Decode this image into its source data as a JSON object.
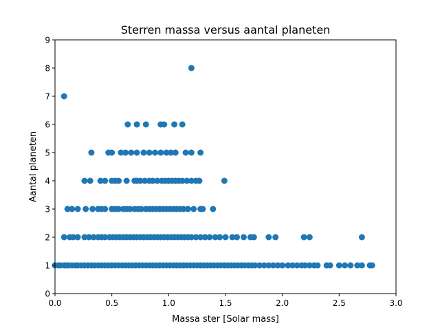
{
  "chart_data": {
    "type": "scatter",
    "title": "Sterren massa versus aantal planeten",
    "xlabel": "Massa ster [Solar mass]",
    "ylabel": "Aantal planeten",
    "xlim": [
      0.0,
      3.0
    ],
    "ylim": [
      0,
      9
    ],
    "xticks": [
      "0.0",
      "0.5",
      "1.0",
      "1.5",
      "2.0",
      "2.5",
      "3.0"
    ],
    "yticks": [
      "0",
      "1",
      "2",
      "3",
      "4",
      "5",
      "6",
      "7",
      "8",
      "9"
    ],
    "grid": false,
    "legend": "none",
    "marker_color": "#1f77b4",
    "series": [
      {
        "points": [
          [
            0.08,
            7
          ],
          [
            1.2,
            8
          ],
          [
            0.64,
            6
          ],
          [
            0.72,
            6
          ],
          [
            0.8,
            6
          ],
          [
            0.93,
            6
          ],
          [
            0.96,
            6
          ],
          [
            1.05,
            6
          ],
          [
            1.12,
            6
          ],
          [
            0.32,
            5
          ],
          [
            0.47,
            5
          ],
          [
            0.5,
            5
          ],
          [
            0.58,
            5
          ],
          [
            0.62,
            5
          ],
          [
            0.67,
            5
          ],
          [
            0.72,
            5
          ],
          [
            0.78,
            5
          ],
          [
            0.83,
            5
          ],
          [
            0.88,
            5
          ],
          [
            0.93,
            5
          ],
          [
            0.98,
            5
          ],
          [
            1.02,
            5
          ],
          [
            1.06,
            5
          ],
          [
            1.15,
            5
          ],
          [
            1.2,
            5
          ],
          [
            1.28,
            5
          ],
          [
            0.26,
            4
          ],
          [
            0.31,
            4
          ],
          [
            0.4,
            4
          ],
          [
            0.44,
            4
          ],
          [
            0.5,
            4
          ],
          [
            0.53,
            4
          ],
          [
            0.56,
            4
          ],
          [
            0.63,
            4
          ],
          [
            0.7,
            4
          ],
          [
            0.72,
            4
          ],
          [
            0.75,
            4
          ],
          [
            0.79,
            4
          ],
          [
            0.83,
            4
          ],
          [
            0.86,
            4
          ],
          [
            0.9,
            4
          ],
          [
            0.94,
            4
          ],
          [
            0.97,
            4
          ],
          [
            1.0,
            4
          ],
          [
            1.03,
            4
          ],
          [
            1.06,
            4
          ],
          [
            1.09,
            4
          ],
          [
            1.12,
            4
          ],
          [
            1.16,
            4
          ],
          [
            1.2,
            4
          ],
          [
            1.24,
            4
          ],
          [
            1.27,
            4
          ],
          [
            1.49,
            4
          ],
          [
            0.11,
            3
          ],
          [
            0.15,
            3
          ],
          [
            0.2,
            3
          ],
          [
            0.27,
            3
          ],
          [
            0.33,
            3
          ],
          [
            0.38,
            3
          ],
          [
            0.41,
            3
          ],
          [
            0.44,
            3
          ],
          [
            0.5,
            3
          ],
          [
            0.53,
            3
          ],
          [
            0.56,
            3
          ],
          [
            0.6,
            3
          ],
          [
            0.63,
            3
          ],
          [
            0.66,
            3
          ],
          [
            0.7,
            3
          ],
          [
            0.73,
            3
          ],
          [
            0.76,
            3
          ],
          [
            0.8,
            3
          ],
          [
            0.83,
            3
          ],
          [
            0.86,
            3
          ],
          [
            0.89,
            3
          ],
          [
            0.92,
            3
          ],
          [
            0.95,
            3
          ],
          [
            0.98,
            3
          ],
          [
            1.01,
            3
          ],
          [
            1.04,
            3
          ],
          [
            1.07,
            3
          ],
          [
            1.1,
            3
          ],
          [
            1.13,
            3
          ],
          [
            1.17,
            3
          ],
          [
            1.22,
            3
          ],
          [
            1.28,
            3
          ],
          [
            1.3,
            3
          ],
          [
            1.39,
            3
          ],
          [
            0.08,
            2
          ],
          [
            0.13,
            2
          ],
          [
            0.16,
            2
          ],
          [
            0.2,
            2
          ],
          [
            0.26,
            2
          ],
          [
            0.3,
            2
          ],
          [
            0.34,
            2
          ],
          [
            0.38,
            2
          ],
          [
            0.41,
            2
          ],
          [
            0.44,
            2
          ],
          [
            0.48,
            2
          ],
          [
            0.51,
            2
          ],
          [
            0.54,
            2
          ],
          [
            0.57,
            2
          ],
          [
            0.6,
            2
          ],
          [
            0.63,
            2
          ],
          [
            0.66,
            2
          ],
          [
            0.69,
            2
          ],
          [
            0.72,
            2
          ],
          [
            0.75,
            2
          ],
          [
            0.78,
            2
          ],
          [
            0.81,
            2
          ],
          [
            0.84,
            2
          ],
          [
            0.87,
            2
          ],
          [
            0.9,
            2
          ],
          [
            0.93,
            2
          ],
          [
            0.96,
            2
          ],
          [
            0.99,
            2
          ],
          [
            1.02,
            2
          ],
          [
            1.05,
            2
          ],
          [
            1.08,
            2
          ],
          [
            1.11,
            2
          ],
          [
            1.14,
            2
          ],
          [
            1.17,
            2
          ],
          [
            1.2,
            2
          ],
          [
            1.24,
            2
          ],
          [
            1.28,
            2
          ],
          [
            1.32,
            2
          ],
          [
            1.36,
            2
          ],
          [
            1.41,
            2
          ],
          [
            1.45,
            2
          ],
          [
            1.5,
            2
          ],
          [
            1.56,
            2
          ],
          [
            1.6,
            2
          ],
          [
            1.66,
            2
          ],
          [
            1.72,
            2
          ],
          [
            1.75,
            2
          ],
          [
            1.88,
            2
          ],
          [
            1.94,
            2
          ],
          [
            2.19,
            2
          ],
          [
            2.24,
            2
          ],
          [
            2.7,
            2
          ],
          [
            0.0,
            1
          ],
          [
            0.03,
            1
          ],
          [
            0.05,
            1
          ],
          [
            0.08,
            1
          ],
          [
            0.1,
            1
          ],
          [
            0.12,
            1
          ],
          [
            0.15,
            1
          ],
          [
            0.18,
            1
          ],
          [
            0.2,
            1
          ],
          [
            0.23,
            1
          ],
          [
            0.26,
            1
          ],
          [
            0.29,
            1
          ],
          [
            0.32,
            1
          ],
          [
            0.35,
            1
          ],
          [
            0.38,
            1
          ],
          [
            0.41,
            1
          ],
          [
            0.44,
            1
          ],
          [
            0.47,
            1
          ],
          [
            0.5,
            1
          ],
          [
            0.53,
            1
          ],
          [
            0.56,
            1
          ],
          [
            0.59,
            1
          ],
          [
            0.62,
            1
          ],
          [
            0.65,
            1
          ],
          [
            0.68,
            1
          ],
          [
            0.71,
            1
          ],
          [
            0.74,
            1
          ],
          [
            0.77,
            1
          ],
          [
            0.8,
            1
          ],
          [
            0.83,
            1
          ],
          [
            0.86,
            1
          ],
          [
            0.89,
            1
          ],
          [
            0.92,
            1
          ],
          [
            0.95,
            1
          ],
          [
            0.98,
            1
          ],
          [
            1.01,
            1
          ],
          [
            1.04,
            1
          ],
          [
            1.07,
            1
          ],
          [
            1.1,
            1
          ],
          [
            1.13,
            1
          ],
          [
            1.16,
            1
          ],
          [
            1.19,
            1
          ],
          [
            1.22,
            1
          ],
          [
            1.25,
            1
          ],
          [
            1.28,
            1
          ],
          [
            1.31,
            1
          ],
          [
            1.34,
            1
          ],
          [
            1.37,
            1
          ],
          [
            1.4,
            1
          ],
          [
            1.43,
            1
          ],
          [
            1.46,
            1
          ],
          [
            1.49,
            1
          ],
          [
            1.52,
            1
          ],
          [
            1.55,
            1
          ],
          [
            1.58,
            1
          ],
          [
            1.61,
            1
          ],
          [
            1.64,
            1
          ],
          [
            1.67,
            1
          ],
          [
            1.7,
            1
          ],
          [
            1.73,
            1
          ],
          [
            1.76,
            1
          ],
          [
            1.8,
            1
          ],
          [
            1.84,
            1
          ],
          [
            1.88,
            1
          ],
          [
            1.92,
            1
          ],
          [
            1.96,
            1
          ],
          [
            2.0,
            1
          ],
          [
            2.05,
            1
          ],
          [
            2.09,
            1
          ],
          [
            2.13,
            1
          ],
          [
            2.17,
            1
          ],
          [
            2.2,
            1
          ],
          [
            2.24,
            1
          ],
          [
            2.28,
            1
          ],
          [
            2.31,
            1
          ],
          [
            2.39,
            1
          ],
          [
            2.42,
            1
          ],
          [
            2.5,
            1
          ],
          [
            2.55,
            1
          ],
          [
            2.6,
            1
          ],
          [
            2.66,
            1
          ],
          [
            2.7,
            1
          ],
          [
            2.77,
            1
          ],
          [
            2.79,
            1
          ]
        ]
      }
    ]
  }
}
